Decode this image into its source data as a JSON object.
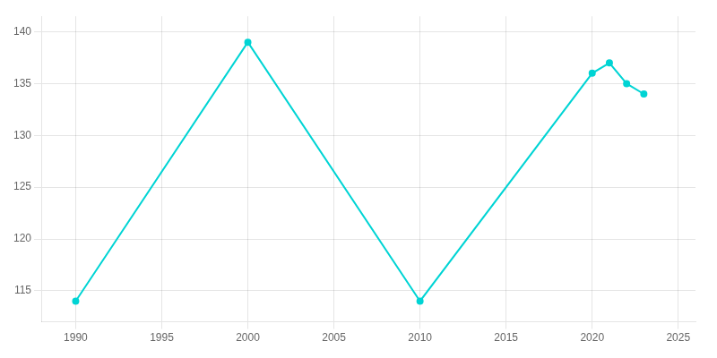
{
  "chart_data": {
    "type": "line",
    "x": [
      1990,
      2000,
      2010,
      2020,
      2021,
      2022,
      2023
    ],
    "values": [
      114,
      139,
      114,
      136,
      137,
      135,
      134
    ],
    "color": "#00d4d4",
    "marker": "circle",
    "line_style": "solid",
    "xlim": [
      1988,
      2026
    ],
    "ylim": [
      112,
      141.5
    ],
    "xticks": [
      1990,
      1995,
      2000,
      2005,
      2010,
      2015,
      2020,
      2025
    ],
    "yticks": [
      115,
      120,
      125,
      130,
      135,
      140
    ],
    "grid": true
  }
}
